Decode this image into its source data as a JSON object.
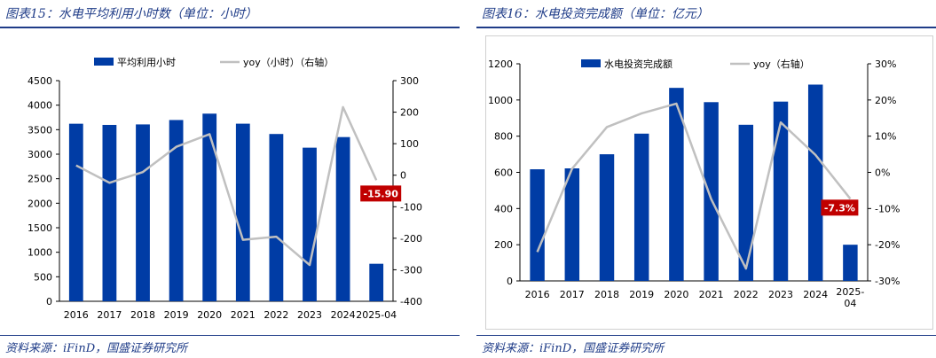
{
  "colors": {
    "bar": "#003ca5",
    "line": "#c0c0c0",
    "callout": "#c00000",
    "title": "#1f3c88"
  },
  "left": {
    "title": "图表15：水电平均利用小时数（单位：小时）",
    "source": "资料来源：iFinD，国盛证券研究所",
    "legend": {
      "bar": "平均利用小时",
      "line": "yoy（小时）（右轴）"
    },
    "callout": "-15.90"
  },
  "right": {
    "title": "图表16：水电投资完成额（单位：亿元）",
    "source": "资料来源：iFinD，国盛证券研究所",
    "legend": {
      "bar": "水电投资完成额",
      "line": "yoy（右轴）"
    },
    "callout": "-7.3%"
  },
  "chart_data": [
    {
      "type": "bar",
      "categories": [
        "2016",
        "2017",
        "2018",
        "2019",
        "2020",
        "2021",
        "2022",
        "2023",
        "2024",
        "2025-04"
      ],
      "series": [
        {
          "name": "平均利用小时",
          "type": "bar",
          "axis": "left",
          "values": [
            3621,
            3597,
            3607,
            3697,
            3827,
            3622,
            3412,
            3133,
            3349,
            765
          ]
        },
        {
          "name": "yoy（小时）（右轴）",
          "type": "line",
          "axis": "right",
          "values": [
            31,
            -24,
            10,
            90,
            130,
            -205,
            -195,
            -285,
            216,
            -15.9
          ]
        }
      ],
      "ylim_left": [
        0,
        4500
      ],
      "yticks_left": [
        0,
        500,
        1000,
        1500,
        2000,
        2500,
        3000,
        3500,
        4000,
        4500
      ],
      "ylim_right": [
        -400,
        300
      ],
      "yticks_right": [
        -400,
        -300,
        -200,
        -100,
        0,
        100,
        200,
        300
      ],
      "annotation": "-15.90",
      "legend_position": "top"
    },
    {
      "type": "bar",
      "categories": [
        "2016",
        "2017",
        "2018",
        "2019",
        "2020",
        "2021",
        "2022",
        "2023",
        "2024",
        "2025-04"
      ],
      "series": [
        {
          "name": "水电投资完成额",
          "type": "bar",
          "axis": "left",
          "values": [
            617,
            622,
            700,
            814,
            1067,
            988,
            863,
            991,
            1085,
            200
          ]
        },
        {
          "name": "yoy（右轴）",
          "type": "line",
          "axis": "right",
          "values": [
            -22,
            1,
            12.5,
            16.3,
            19,
            -7.4,
            -26.6,
            13.8,
            4.8,
            -7.3
          ]
        }
      ],
      "ylim_left": [
        0,
        1200
      ],
      "yticks_left": [
        0,
        200,
        400,
        600,
        800,
        1000,
        1200
      ],
      "ylim_right": [
        -30,
        30
      ],
      "yticks_right": [
        "-30%",
        "-20%",
        "-10%",
        "0%",
        "10%",
        "20%",
        "30%"
      ],
      "annotation": "-7.3%",
      "legend_position": "top"
    }
  ]
}
